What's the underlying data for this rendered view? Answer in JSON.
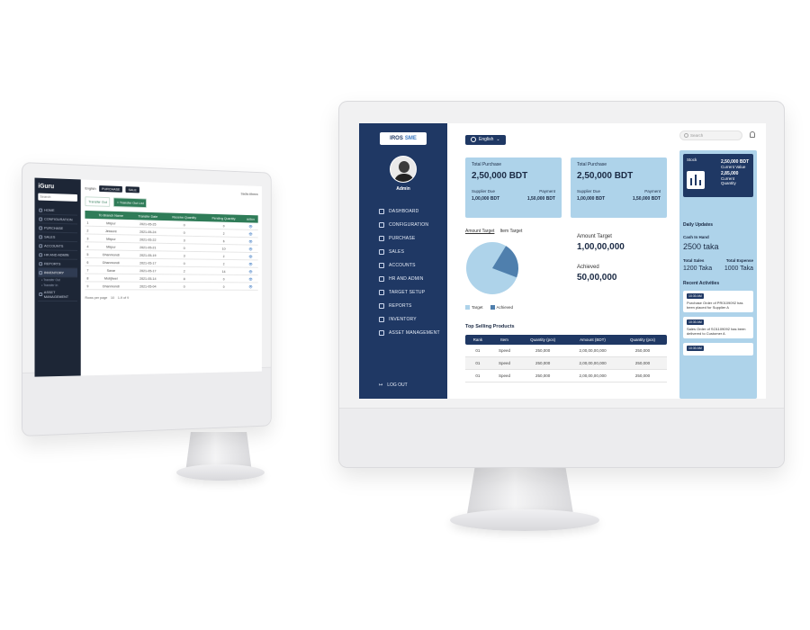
{
  "left_screen": {
    "logo": "iGuru",
    "search": "Search",
    "nav": [
      {
        "label": "HOME",
        "active": false
      },
      {
        "label": "CONFIGURATION",
        "active": false
      },
      {
        "label": "PURCHASE",
        "active": false
      },
      {
        "label": "SALES",
        "active": false
      },
      {
        "label": "ACCOUNTS",
        "active": false
      },
      {
        "label": "HR AND ADMIN",
        "active": false
      },
      {
        "label": "REPORTS",
        "active": false
      },
      {
        "label": "INVENTORY",
        "active": true
      }
    ],
    "subnav": [
      "Transfer Out",
      "Transfer In"
    ],
    "nav_bottom": "ASSET MANAGEMENT",
    "topbar": {
      "lang": "English",
      "pill1": "PURCHASE",
      "pill2": "SALE",
      "user": "Sadia Afreen"
    },
    "tabs": [
      "Transfer Out",
      "+ Transfer Out List"
    ],
    "table": {
      "headers": [
        "",
        "To Branch Name",
        "Transfer Date",
        "Receive Quantity",
        "Pending Quantity",
        "action"
      ],
      "rows": [
        [
          "1",
          "Mirpur",
          "2021-05-25",
          "0",
          "0",
          "👁"
        ],
        [
          "2",
          "Jessore",
          "2021-05-24",
          "0",
          "2",
          "👁"
        ],
        [
          "3",
          "Mirpur",
          "2021-05-22",
          "3",
          "6",
          "👁"
        ],
        [
          "4",
          "Mirpur",
          "2021-05-21",
          "0",
          "10",
          "👁"
        ],
        [
          "5",
          "Dhanmondi",
          "2021-05-19",
          "3",
          "2",
          "👁"
        ],
        [
          "6",
          "Dhanmondi",
          "2021-05-17",
          "0",
          "2",
          "👁"
        ],
        [
          "7",
          "Savar",
          "2021-05-17",
          "2",
          "14",
          "👁"
        ],
        [
          "8",
          "Motijheel",
          "2021-05-14",
          "8",
          "0",
          "👁"
        ],
        [
          "9",
          "Dhanmondi",
          "2021-05-04",
          "0",
          "0",
          "👁"
        ]
      ]
    },
    "pager": {
      "rows_label": "Rows per page",
      "rows": "10",
      "range": "1-9 of 9"
    }
  },
  "right_screen": {
    "brand": "IROS SME",
    "brand_a": "IROS",
    "brand_b": "SME",
    "user_name": "Admin",
    "nav": [
      "DASHBOARD",
      "CONFIGURATION",
      "PURCHASE",
      "SALES",
      "ACCOUNTS",
      "HR AND ADMIN",
      "TARGET SETUP",
      "REPORTS",
      "INVENTORY",
      "ASSET MANAGEMENT"
    ],
    "logout": "LOG OUT",
    "language": "English",
    "search_placeholder": "Search",
    "cards": [
      {
        "title": "Total Purchase",
        "value": "2,50,000 BDT",
        "left_label": "Supplier Due",
        "right_label": "Payment",
        "left_value": "1,00,000 BDT",
        "right_value": "1,50,000 BDT"
      },
      {
        "title": "Total Purchase",
        "value": "2,50,000 BDT",
        "left_label": "Supplier Due",
        "right_label": "Payment",
        "left_value": "1,00,000 BDT",
        "right_value": "1,50,000 BDT"
      }
    ],
    "pie": {
      "tab_amount": "Amount Target",
      "tab_item": "Item Target",
      "legend_target": "Target",
      "legend_achieved": "Achieved",
      "target_color": "#aed3ea",
      "achieved_color": "#4f7fad",
      "achieved_fraction": 0.5
    },
    "amount_target_label": "Amount Target",
    "amount_target_value": "1,00,00,000",
    "achieved_label": "Achieved",
    "achieved_value": "50,00,000",
    "top_selling": {
      "title": "Top Selling Products",
      "headers": [
        "Rank",
        "Item",
        "Quantity (pcs)",
        "Amount (BDT)",
        "Quantity (pcs)"
      ],
      "rows": [
        [
          "01",
          "Speed",
          "250,000",
          "2,00,00,00,000",
          "250,000"
        ],
        [
          "01",
          "Speed",
          "250,000",
          "2,00,00,00,000",
          "250,000"
        ],
        [
          "01",
          "Speed",
          "250,000",
          "2,00,00,00,000",
          "250,000"
        ]
      ]
    },
    "stock": {
      "label": "Stock",
      "current_value": "2,50,000 BDT",
      "current_value_label": "Current Value",
      "current_qty": "2,85,000",
      "current_qty_label": "Current Quantity"
    },
    "daily_updates": "Daily Updates",
    "cash_label": "Cash In Hand",
    "cash_value": "2500 taka",
    "total_sales_label": "Total Sales",
    "total_expense_label": "Total Expense",
    "total_sales_value": "1200 Taka",
    "total_expense_value": "1000 Taka",
    "recent_title": "Recent Activities",
    "activities": [
      {
        "time": "10:30 AM",
        "text": "Purchase Order of PR0109092 has been placed for Supplier A"
      },
      {
        "time": "10:30 AM",
        "text": "Sales Order of SO1109092 has been delivered to Customer A"
      },
      {
        "time": "10:30 AM",
        "text": ""
      }
    ],
    "colors": {
      "navy": "#1f3864",
      "light_blue": "#aed3ea",
      "green": "#2f7c58"
    }
  }
}
